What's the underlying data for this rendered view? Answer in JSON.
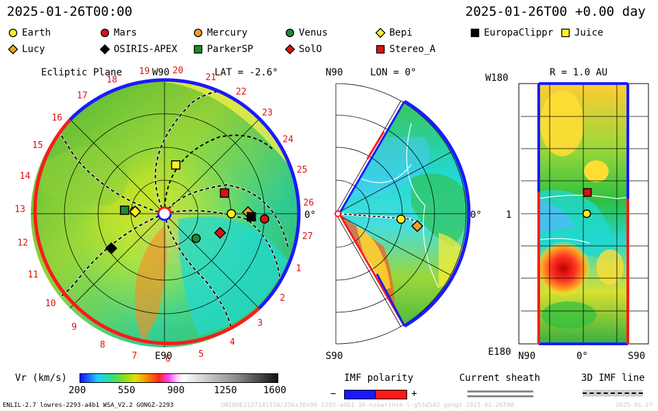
{
  "header": {
    "left_time": "2025-01-26T00:00",
    "right_time": "2025-01-26T00 +0.00 day"
  },
  "legend": [
    {
      "name": "Earth",
      "shape": "circle",
      "color": "#ffee22"
    },
    {
      "name": "Mars",
      "shape": "circle",
      "color": "#dd1111"
    },
    {
      "name": "Mercury",
      "shape": "circle",
      "color": "#f0a020"
    },
    {
      "name": "Venus",
      "shape": "circle",
      "color": "#228833"
    },
    {
      "name": "Bepi",
      "shape": "diamond",
      "color": "#ffee22"
    },
    {
      "name": "EuropaClippr",
      "shape": "square",
      "color": "#000000"
    },
    {
      "name": "Juice",
      "shape": "square",
      "color": "#ffee22"
    },
    {
      "name": "Lucy",
      "shape": "diamond",
      "color": "#f0a020"
    },
    {
      "name": "OSIRIS-APEX",
      "shape": "diamond",
      "color": "#000000"
    },
    {
      "name": "ParkerSP",
      "shape": "square",
      "color": "#228833"
    },
    {
      "name": "SolO",
      "shape": "diamond",
      "color": "#dd1111"
    },
    {
      "name": "Stereo_A",
      "shape": "square",
      "color": "#dd1111"
    }
  ],
  "chart_data": [
    {
      "type": "heatmap",
      "panel": "ecliptic",
      "title": "Ecliptic Plane",
      "lat_label": "LAT = -2.6°",
      "top_label": "W90",
      "bottom_label": "E90",
      "right_label": "0°",
      "carrington_ticks": [
        "19",
        "20",
        "21",
        "22",
        "23",
        "24",
        "25",
        "26",
        "27",
        "1",
        "2",
        "3",
        "4",
        "5",
        "6",
        "7",
        "8",
        "9",
        "10",
        "11",
        "12",
        "13",
        "14",
        "15",
        "16",
        "17",
        "18"
      ],
      "bodies": [
        {
          "name": "Earth",
          "r_au": 1.0,
          "angle_deg": 0
        },
        {
          "name": "Mercury",
          "r_au": 0.45,
          "angle_deg": 175
        },
        {
          "name": "Venus",
          "r_au": 0.6,
          "angle_deg": -38
        },
        {
          "name": "Mars",
          "r_au": 1.5,
          "angle_deg": -3
        },
        {
          "name": "Bepi",
          "r_au": 0.44,
          "angle_deg": 176
        },
        {
          "name": "Lucy",
          "r_au": 1.25,
          "angle_deg": 1
        },
        {
          "name": "OSIRIS-APEX",
          "r_au": 0.95,
          "angle_deg": -147
        },
        {
          "name": "ParkerSP",
          "r_au": 0.6,
          "angle_deg": 175
        },
        {
          "name": "SolO",
          "r_au": 0.88,
          "angle_deg": -19
        },
        {
          "name": "Stereo_A",
          "r_au": 0.95,
          "angle_deg": 19
        },
        {
          "name": "Juice",
          "r_au": 0.75,
          "angle_deg": 77
        },
        {
          "name": "EuropaClippr",
          "r_au": 1.3,
          "angle_deg": -2
        }
      ]
    },
    {
      "type": "heatmap",
      "panel": "meridional",
      "top_label": "N90",
      "bottom_label": "S90",
      "lon_label": "LON = 0°",
      "right_label": "0°"
    },
    {
      "type": "heatmap",
      "panel": "synoptic",
      "r_label": "R = 1.0 AU",
      "top_label": "W180",
      "bottom_label": "E180",
      "mid_label": "1",
      "x_tick_labels": [
        "N90",
        "0°",
        "S90"
      ]
    }
  ],
  "colorbar": {
    "label": "Vr (km/s)",
    "ticks": [
      "200",
      "550",
      "900",
      "1250",
      "1600"
    ],
    "range": [
      200,
      1600
    ]
  },
  "imf": {
    "label": "IMF polarity",
    "minus": "−",
    "plus": "+",
    "neg_color": "#1a1aff",
    "pos_color": "#ff1a1a"
  },
  "current_sheath": {
    "label": "Current sheath"
  },
  "imf_line": {
    "label": "3D IMF line"
  },
  "footer": {
    "left": "ENLIL-2.7 lowres-2293-a4b1 WSA_V2.2 GONGZ-2293",
    "center": "UNIQUE2127141116/256x30x90-2293-a4b1 16-nsoarinse-l-g53d5d2.gongz-2025-01-26T00",
    "right": "2025-01-27"
  }
}
